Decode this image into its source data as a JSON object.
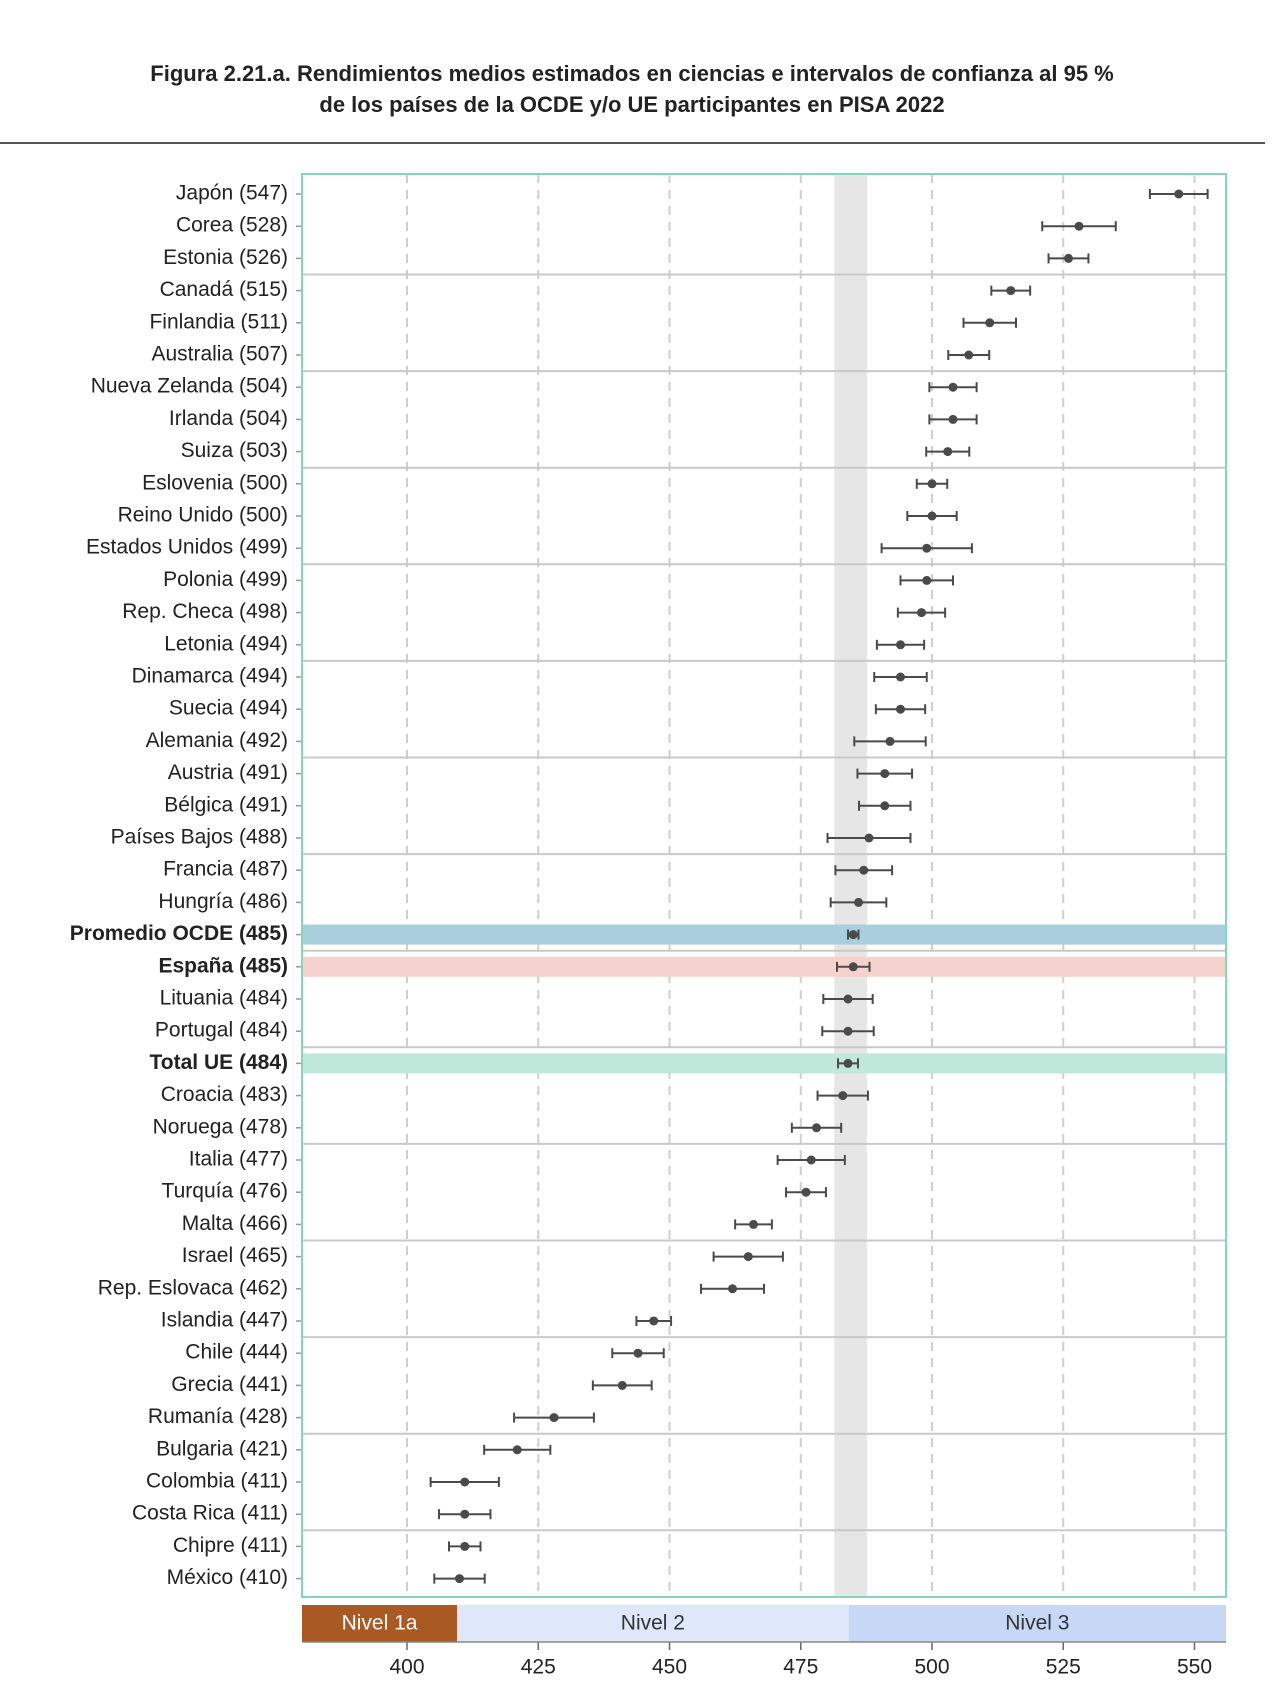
{
  "chart_data": {
    "type": "errorbar",
    "title": [
      "Figura 2.21.a. Rendimientos medios estimados en ciencias e intervalos de confianza al 95 %",
      "de los países de la OCDE y/o UE participantes en PISA 2022"
    ],
    "categories": [
      "Japón (547)",
      "Corea (528)",
      "Estonia (526)",
      "Canadá (515)",
      "Finlandia (511)",
      "Australia (507)",
      "Nueva Zelanda (504)",
      "Irlanda (504)",
      "Suiza (503)",
      "Eslovenia (500)",
      "Reino Unido (500)",
      "Estados Unidos (499)",
      "Polonia (499)",
      "Rep. Checa (498)",
      "Letonia (494)",
      "Dinamarca (494)",
      "Suecia (494)",
      "Alemania (492)",
      "Austria (491)",
      "Bélgica (491)",
      "Países Bajos (488)",
      "Francia (487)",
      "Hungría (486)",
      "Promedio OCDE (485)",
      "España (485)",
      "Lituania (484)",
      "Portugal (484)",
      "Total UE (484)",
      "Croacia (483)",
      "Noruega (478)",
      "Italia (477)",
      "Turquía (476)",
      "Malta (466)",
      "Israel (465)",
      "Rep. Eslovaca (462)",
      "Islandia (447)",
      "Chile (444)",
      "Grecia (441)",
      "Rumanía (428)",
      "Bulgaria (421)",
      "Colombia (411)",
      "Costa Rica (411)",
      "Chipre (411)",
      "México (410)"
    ],
    "values": [
      547,
      528,
      526,
      515,
      511,
      507,
      504,
      504,
      503,
      500,
      500,
      499,
      499,
      498,
      494,
      494,
      494,
      492,
      491,
      491,
      488,
      487,
      486,
      485,
      485,
      484,
      484,
      484,
      483,
      478,
      477,
      476,
      466,
      465,
      462,
      447,
      444,
      441,
      428,
      421,
      411,
      411,
      411,
      410
    ],
    "errors": [
      5.5,
      7,
      3.8,
      3.7,
      5,
      3.9,
      4.5,
      4.5,
      4.1,
      2.9,
      4.7,
      8.6,
      5,
      4.5,
      4.5,
      5,
      4.7,
      6.8,
      5.2,
      4.9,
      7.9,
      5.4,
      5.3,
      1,
      3.1,
      4.7,
      4.9,
      1.9,
      4.8,
      4.7,
      6.4,
      3.8,
      3.5,
      6.6,
      6,
      3.3,
      4.9,
      5.6,
      7.6,
      6.3,
      6.5,
      4.9,
      3,
      4.8
    ],
    "row_colors": [
      null,
      null,
      null,
      null,
      null,
      null,
      null,
      null,
      null,
      null,
      null,
      null,
      null,
      null,
      null,
      null,
      null,
      null,
      null,
      null,
      null,
      null,
      null,
      "#a9cfdd",
      "#f6d2cf",
      null,
      null,
      "#bfe8da",
      null,
      null,
      null,
      null,
      null,
      null,
      null,
      null,
      null,
      null,
      null,
      null,
      null,
      null,
      null,
      null
    ],
    "color": "#4a4a4a",
    "reference_band": [
      481.4,
      487.6
    ],
    "levels": [
      {
        "label": "Nivel 1a",
        "from": 334.94,
        "to": 409.54,
        "color": "#a85a22",
        "text_color": "#ffffff"
      },
      {
        "label": "Nivel 2",
        "from": 409.54,
        "to": 484.14,
        "color": "#dfe8fa",
        "text_color": "#333333"
      },
      {
        "label": "Nivel 3",
        "from": 484.14,
        "to": 558.73,
        "color": "#c6d8f6",
        "text_color": "#333333"
      }
    ],
    "xlim": [
      380,
      556
    ],
    "xticks": [
      400,
      425,
      450,
      475,
      500,
      525,
      550
    ],
    "grid": true
  }
}
